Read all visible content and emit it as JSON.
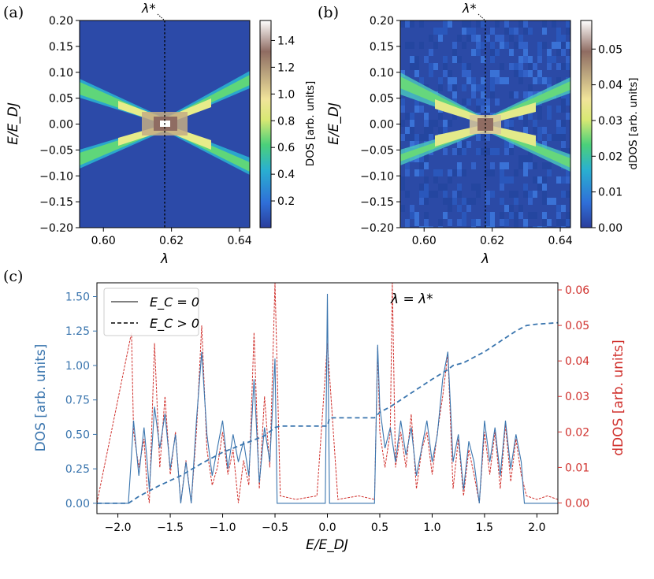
{
  "chart_data": [
    {
      "panel_label": "(a)",
      "type": "heatmap",
      "xlabel": "λ",
      "ylabel": "E/E_DJ",
      "xlim": [
        0.593,
        0.643
      ],
      "ylim": [
        -0.2,
        0.2
      ],
      "x_ticks": [
        "0.60",
        "0.62",
        "0.64"
      ],
      "y_ticks": [
        "0.20",
        "0.15",
        "0.10",
        "0.05",
        "0.00",
        "−0.05",
        "−0.10",
        "−0.15",
        "−0.20"
      ],
      "marker_label": "λ*",
      "marker_x": 0.618,
      "colorbar": {
        "label": "DOS [arb. units]",
        "range": [
          0,
          1.55
        ],
        "ticks": [
          "0.2",
          "0.4",
          "0.6",
          "0.8",
          "1.0",
          "1.2",
          "1.4"
        ]
      }
    },
    {
      "panel_label": "(b)",
      "type": "heatmap",
      "xlabel": "λ",
      "ylabel": "E/E_DJ",
      "xlim": [
        0.593,
        0.643
      ],
      "ylim": [
        -0.2,
        0.2
      ],
      "x_ticks": [
        "0.60",
        "0.62",
        "0.64"
      ],
      "y_ticks": [
        "0.20",
        "0.15",
        "0.10",
        "0.05",
        "0.00",
        "−0.05",
        "−0.10",
        "−0.15",
        "−0.20"
      ],
      "marker_label": "λ*",
      "marker_x": 0.618,
      "colorbar": {
        "label": "dDOS [arb. units]",
        "range": [
          0,
          0.058
        ],
        "ticks": [
          "0.00",
          "0.01",
          "0.02",
          "0.03",
          "0.04",
          "0.05"
        ]
      }
    },
    {
      "panel_label": "(c)",
      "type": "line",
      "xlabel": "E/E_DJ",
      "ylabel": "DOS [arb. units]",
      "ylabel_right": "dDOS [arb. units]",
      "xlim": [
        -2.2,
        2.2
      ],
      "ylim": [
        -0.075,
        1.6
      ],
      "ylim_right": [
        -0.003,
        0.062
      ],
      "x_ticks": [
        "−2.0",
        "−1.5",
        "−1.0",
        "−0.5",
        "0.0",
        "0.5",
        "1.0",
        "1.5",
        "2.0"
      ],
      "y_ticks": [
        "0.00",
        "0.25",
        "0.50",
        "0.75",
        "1.00",
        "1.25",
        "1.50"
      ],
      "y_ticks_right": [
        "0.00",
        "0.01",
        "0.02",
        "0.03",
        "0.04",
        "0.05",
        "0.06"
      ],
      "annotation": "λ = λ*",
      "legend": [
        "E_C = 0",
        "E_C > 0"
      ],
      "legend_position": "top-left",
      "colors": {
        "dos": "#3a75ae",
        "ddos": "#d0312d"
      },
      "series": [
        {
          "name": "E_C = 0",
          "axis": "left",
          "style": "solid",
          "x": [
            -1.9,
            -1.87,
            -1.85,
            -1.8,
            -1.75,
            -1.72,
            -1.7,
            -1.65,
            -1.6,
            -1.55,
            -1.5,
            -1.45,
            -1.4,
            -1.35,
            -1.3,
            -1.25,
            -1.2,
            -1.15,
            -1.1,
            -1.05,
            -1.0,
            -0.95,
            -0.9,
            -0.85,
            -0.8,
            -0.75,
            -0.7,
            -0.65,
            -0.6,
            -0.55,
            -0.5,
            -0.48,
            -0.45,
            -0.02,
            0.0,
            0.02,
            0.45,
            0.48,
            0.5,
            0.55,
            0.6,
            0.65,
            0.7,
            0.75,
            0.8,
            0.85,
            0.9,
            0.95,
            1.0,
            1.05,
            1.1,
            1.15,
            1.2,
            1.25,
            1.3,
            1.35,
            1.4,
            1.45,
            1.5,
            1.55,
            1.6,
            1.65,
            1.7,
            1.75,
            1.8,
            1.85,
            1.88
          ],
          "y": [
            0.0,
            0.35,
            0.6,
            0.2,
            0.55,
            0.3,
            0.1,
            0.7,
            0.4,
            0.65,
            0.25,
            0.5,
            0.0,
            0.3,
            0.0,
            0.6,
            1.1,
            0.5,
            0.2,
            0.4,
            0.6,
            0.25,
            0.5,
            0.3,
            0.45,
            0.2,
            0.9,
            0.15,
            0.55,
            0.3,
            1.05,
            0.0,
            0.0,
            0.0,
            1.52,
            0.0,
            0.0,
            1.15,
            0.7,
            0.4,
            0.55,
            0.3,
            0.6,
            0.35,
            0.55,
            0.2,
            0.4,
            0.6,
            0.3,
            0.5,
            0.9,
            1.1,
            0.3,
            0.5,
            0.1,
            0.45,
            0.3,
            0.0,
            0.6,
            0.3,
            0.55,
            0.2,
            0.6,
            0.25,
            0.5,
            0.3,
            0.0
          ]
        },
        {
          "name": "E_C > 0",
          "axis": "right",
          "style": "dashed",
          "x": [
            -1.87,
            -1.85,
            -1.8,
            -1.75,
            -1.72,
            -1.7,
            -1.65,
            -1.6,
            -1.55,
            -1.5,
            -1.45,
            -1.4,
            -1.35,
            -1.3,
            -1.25,
            -1.2,
            -1.15,
            -1.1,
            -1.05,
            -1.0,
            -0.95,
            -0.9,
            -0.85,
            -0.8,
            -0.75,
            -0.7,
            -0.65,
            -0.6,
            -0.55,
            -0.5,
            -0.45,
            -0.3,
            -0.1,
            0.0,
            0.1,
            0.3,
            0.45,
            0.48,
            0.5,
            0.55,
            0.6,
            0.62,
            0.65,
            0.7,
            0.75,
            0.8,
            0.85,
            0.9,
            0.95,
            1.0,
            1.05,
            1.1,
            1.15,
            1.2,
            1.25,
            1.3,
            1.35,
            1.4,
            1.45,
            1.5,
            1.55,
            1.6,
            1.65,
            1.7,
            1.75,
            1.8,
            1.85,
            1.9,
            2.0,
            2.1,
            2.2
          ],
          "y": [
            0.048,
            0.02,
            0.01,
            0.018,
            0.004,
            0.0,
            0.045,
            0.01,
            0.03,
            0.008,
            0.02,
            0.0,
            0.012,
            0.0,
            0.02,
            0.05,
            0.015,
            0.005,
            0.01,
            0.02,
            0.008,
            0.015,
            0.0,
            0.012,
            0.005,
            0.048,
            0.004,
            0.03,
            0.01,
            0.062,
            0.002,
            0.001,
            0.002,
            0.045,
            0.001,
            0.002,
            0.001,
            0.044,
            0.02,
            0.01,
            0.02,
            0.062,
            0.01,
            0.02,
            0.01,
            0.025,
            0.004,
            0.015,
            0.02,
            0.008,
            0.02,
            0.03,
            0.042,
            0.004,
            0.018,
            0.002,
            0.015,
            0.008,
            0.0,
            0.02,
            0.008,
            0.02,
            0.004,
            0.022,
            0.006,
            0.018,
            0.008,
            0.002,
            0.001,
            0.002,
            0.001
          ]
        },
        {
          "name": "",
          "axis": "left",
          "style": "dashed",
          "x": [
            -2.2,
            -1.9,
            -1.8,
            -1.6,
            -1.4,
            -1.2,
            -1.0,
            -0.8,
            -0.6,
            -0.5,
            -0.45,
            0.0,
            0.02,
            0.45,
            0.5,
            0.6,
            0.8,
            1.0,
            1.15,
            1.2,
            1.3,
            1.5,
            1.6,
            1.8,
            1.9,
            2.0,
            2.2
          ],
          "y": [
            0.0,
            0.0,
            0.05,
            0.13,
            0.2,
            0.29,
            0.37,
            0.43,
            0.49,
            0.55,
            0.56,
            0.56,
            0.62,
            0.62,
            0.66,
            0.7,
            0.8,
            0.9,
            0.97,
            1.0,
            1.02,
            1.1,
            1.15,
            1.25,
            1.29,
            1.3,
            1.31
          ]
        }
      ]
    }
  ]
}
